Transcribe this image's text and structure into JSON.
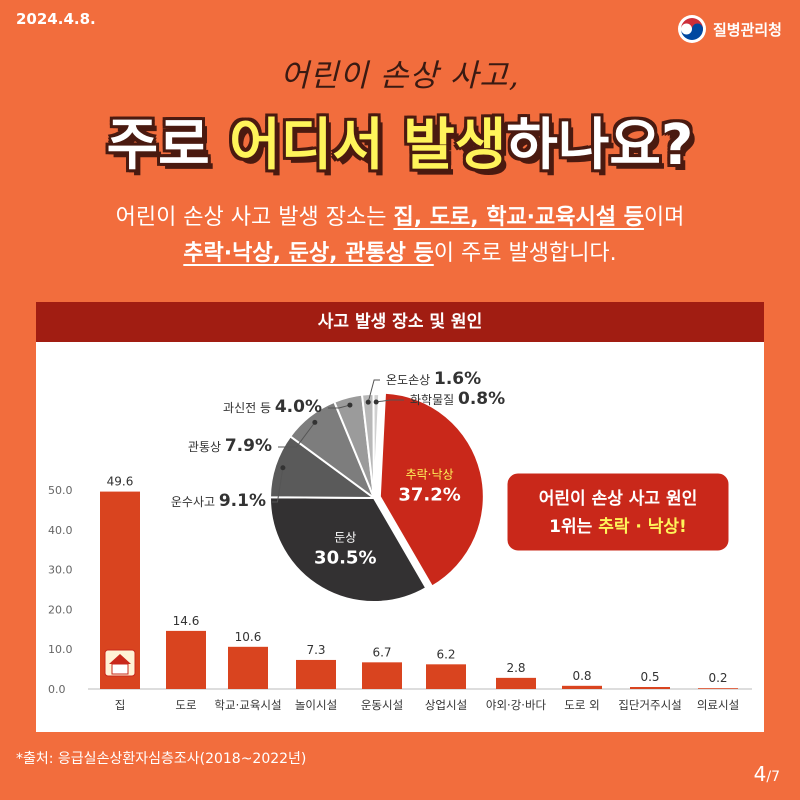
{
  "header": {
    "date": "2024.4.8.",
    "agency": "질병관리청",
    "agency_icon": "korean-government-emblem-icon"
  },
  "title": {
    "line1": "어린이 손상 사고,",
    "line2_a": "주로 ",
    "line2_hl1": "어디서",
    "line2_sp": " ",
    "line2_hl2": "발생",
    "line2_b": "하나요?"
  },
  "subtitle": {
    "l1_a": "어린이 손상 사고 발생 장소는 ",
    "l1_b": "집, 도로, 학교·교육시설 등",
    "l1_c": "이며",
    "l2_a": "추락·낙상, 둔상, 관통상 등",
    "l2_b": "이 주로 발생합니다."
  },
  "panel_title": "사고 발생 장소 및 원인",
  "callout": {
    "line1": "어린이 손상 사고 원인",
    "line2_a": "1위는 ",
    "line2_b": "추락 · 낙상!"
  },
  "colors": {
    "background": "#f26d3d",
    "bar": "#d9441f",
    "accent": "#a11d12",
    "highlight": "#fff45a"
  },
  "chart_data": [
    {
      "type": "bar",
      "categories": [
        "집",
        "도로",
        "학교·교육시설",
        "놀이시설",
        "운동시설",
        "상업시설",
        "야외·강·바다",
        "도로 외",
        "집단거주시설",
        "의료시설"
      ],
      "values": [
        49.6,
        14.6,
        10.6,
        7.3,
        6.7,
        6.2,
        2.8,
        0.8,
        0.5,
        0.2
      ],
      "ylim": [
        0,
        50
      ],
      "yticks": [
        "50.0",
        "40.0",
        "30.0",
        "20.0",
        "10.0",
        "0.0"
      ],
      "grid": false
    },
    {
      "type": "pie",
      "slices": [
        {
          "label": "추락·낙상",
          "value": 37.2,
          "color": "#c9281a"
        },
        {
          "label": "둔상",
          "value": 30.5,
          "color": "#333132"
        },
        {
          "label": "운수사고",
          "value": 9.1,
          "color": "#5a5a5a"
        },
        {
          "label": "관통상",
          "value": 7.9,
          "color": "#7d7d7d"
        },
        {
          "label": "과신전 등",
          "value": 4.0,
          "color": "#9b9b9b"
        },
        {
          "label": "온도손상",
          "value": 1.6,
          "color": "#b8b8b8"
        },
        {
          "label": "화학물질",
          "value": 0.8,
          "color": "#d0d0d0"
        }
      ]
    }
  ],
  "source": "*출처: 응급실손상환자심층조사(2018~2022년)",
  "page": {
    "current": "4",
    "total": "/7"
  }
}
